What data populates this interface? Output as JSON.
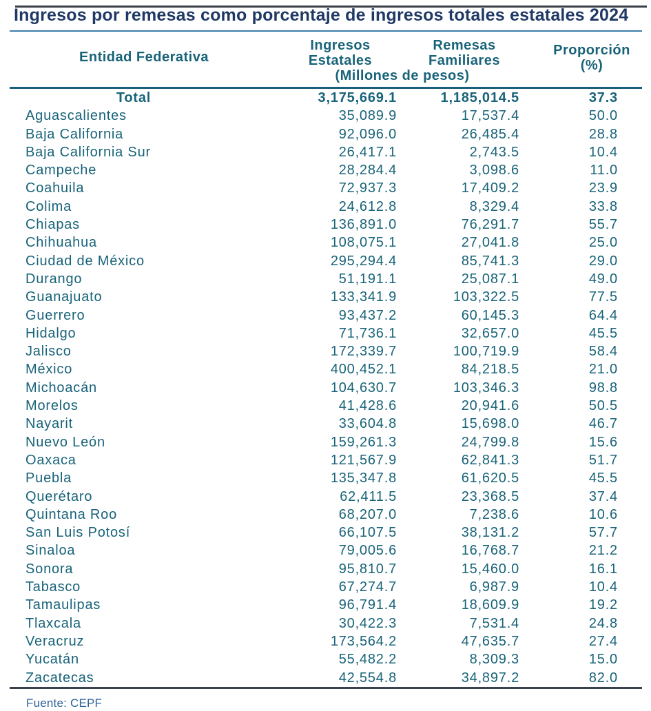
{
  "page": {
    "title": "Ingresos por remesas como porcentaje de ingresos totales estatales 2024",
    "source_note": "Fuente: CEPF"
  },
  "header_display": {
    "entidad": "Entidad Federativa",
    "ingresos_l1": "Ingresos",
    "ingresos_l2": "Estatales",
    "remesas_l1": "Remesas",
    "remesas_l2": "Familiares",
    "millones": "(Millones de pesos)",
    "proporcion_l1": "Proporción",
    "proporcion_l2": "(%)"
  },
  "colors": {
    "title_text": "#1F3864",
    "table_text": "#186379",
    "title_rule": "#3F7CAC",
    "header_rule": "#1B5E7D",
    "bottom_rule": "#3A4250",
    "source_text": "#2D6398"
  },
  "chart_data": {
    "type": "table",
    "title": "Ingresos por remesas como porcentaje de ingresos totales estatales 2024",
    "columns": [
      "Entidad Federativa",
      "Ingresos Estatales (Millones de pesos)",
      "Remesas Familiares (Millones de pesos)",
      "Proporción (%)"
    ],
    "units_note": "(Millones de pesos)",
    "total_row": [
      "Total",
      "3,175,669.1",
      "1,185,014.5",
      "37.3"
    ],
    "rows": [
      [
        "Aguascalientes",
        "35,089.9",
        "17,537.4",
        "50.0"
      ],
      [
        "Baja California",
        "92,096.0",
        "26,485.4",
        "28.8"
      ],
      [
        "Baja California Sur",
        "26,417.1",
        "2,743.5",
        "10.4"
      ],
      [
        "Campeche",
        "28,284.4",
        "3,098.6",
        "11.0"
      ],
      [
        "Coahuila",
        "72,937.3",
        "17,409.2",
        "23.9"
      ],
      [
        "Colima",
        "24,612.8",
        "8,329.4",
        "33.8"
      ],
      [
        "Chiapas",
        "136,891.0",
        "76,291.7",
        "55.7"
      ],
      [
        "Chihuahua",
        "108,075.1",
        "27,041.8",
        "25.0"
      ],
      [
        "Ciudad de México",
        "295,294.4",
        "85,741.3",
        "29.0"
      ],
      [
        "Durango",
        "51,191.1",
        "25,087.1",
        "49.0"
      ],
      [
        "Guanajuato",
        "133,341.9",
        "103,322.5",
        "77.5"
      ],
      [
        "Guerrero",
        "93,437.2",
        "60,145.3",
        "64.4"
      ],
      [
        "Hidalgo",
        "71,736.1",
        "32,657.0",
        "45.5"
      ],
      [
        "Jalisco",
        "172,339.7",
        "100,719.9",
        "58.4"
      ],
      [
        "México",
        "400,452.1",
        "84,218.5",
        "21.0"
      ],
      [
        "Michoacán",
        "104,630.7",
        "103,346.3",
        "98.8"
      ],
      [
        "Morelos",
        "41,428.6",
        "20,941.6",
        "50.5"
      ],
      [
        "Nayarit",
        "33,604.8",
        "15,698.0",
        "46.7"
      ],
      [
        "Nuevo León",
        "159,261.3",
        "24,799.8",
        "15.6"
      ],
      [
        "Oaxaca",
        "121,567.9",
        "62,841.3",
        "51.7"
      ],
      [
        "Puebla",
        "135,347.8",
        "61,620.5",
        "45.5"
      ],
      [
        "Querétaro",
        "62,411.5",
        "23,368.5",
        "37.4"
      ],
      [
        "Quintana Roo",
        "68,207.0",
        "7,238.6",
        "10.6"
      ],
      [
        "San Luis Potosí",
        "66,107.5",
        "38,131.2",
        "57.7"
      ],
      [
        "Sinaloa",
        "79,005.6",
        "16,768.7",
        "21.2"
      ],
      [
        "Sonora",
        "95,810.7",
        "15,460.0",
        "16.1"
      ],
      [
        "Tabasco",
        "67,274.7",
        "6,987.9",
        "10.4"
      ],
      [
        "Tamaulipas",
        "96,791.4",
        "18,609.9",
        "19.2"
      ],
      [
        "Tlaxcala",
        "30,422.3",
        "7,531.4",
        "24.8"
      ],
      [
        "Veracruz",
        "173,564.2",
        "47,635.7",
        "27.4"
      ],
      [
        "Yucatán",
        "55,482.2",
        "8,309.3",
        "15.0"
      ],
      [
        "Zacatecas",
        "42,554.8",
        "34,897.2",
        "82.0"
      ]
    ]
  }
}
